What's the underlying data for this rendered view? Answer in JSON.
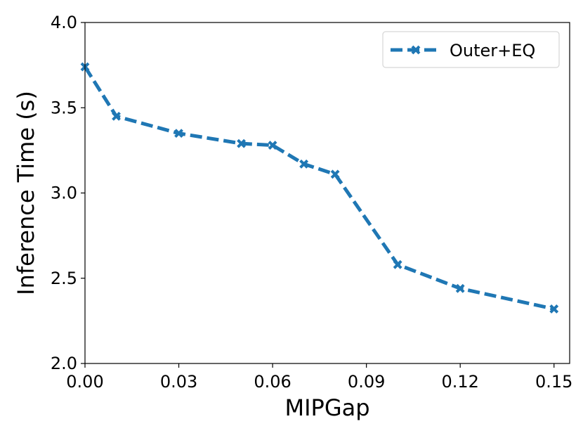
{
  "chart_data": {
    "type": "line",
    "title": "",
    "xlabel": "MIPGap",
    "ylabel": "Inference Time (s)",
    "xlim": [
      0.0,
      0.155
    ],
    "ylim": [
      2.0,
      4.0
    ],
    "xticks": [
      0.0,
      0.03,
      0.06,
      0.09,
      0.12,
      0.15
    ],
    "xtick_labels": [
      "0.00",
      "0.03",
      "0.06",
      "0.09",
      "0.12",
      "0.15"
    ],
    "yticks": [
      2.0,
      2.5,
      3.0,
      3.5,
      4.0
    ],
    "ytick_labels": [
      "2.0",
      "2.5",
      "3.0",
      "3.5",
      "4.0"
    ],
    "grid": false,
    "legend_position": "top-right",
    "series": [
      {
        "name": "Outer+EQ",
        "color": "#1f77b4",
        "line_style": "dashed",
        "marker": "x",
        "x": [
          0.0,
          0.01,
          0.03,
          0.05,
          0.06,
          0.07,
          0.08,
          0.1,
          0.12,
          0.15
        ],
        "y": [
          3.74,
          3.45,
          3.35,
          3.29,
          3.28,
          3.17,
          3.11,
          2.58,
          2.44,
          2.32
        ]
      }
    ]
  }
}
